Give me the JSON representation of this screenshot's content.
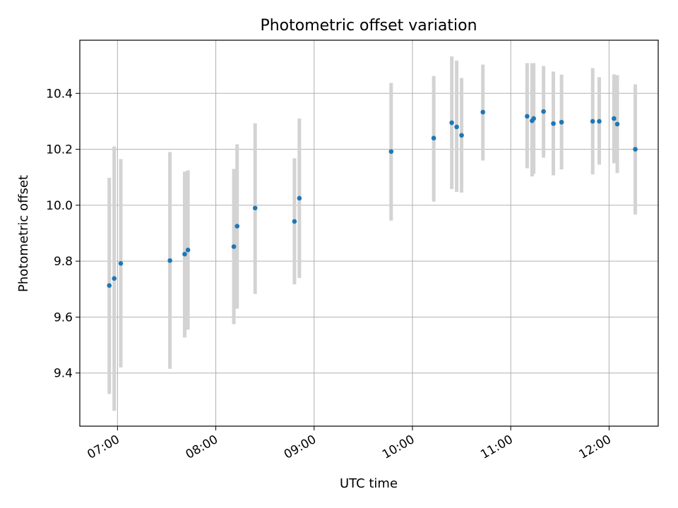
{
  "chart_data": {
    "type": "scatter",
    "title": "Photometric offset variation",
    "xlabel": "UTC time",
    "ylabel": "Photometric offset",
    "x_unit": "time (HH:MM UTC)",
    "xlim": [
      "06:37",
      "12:30"
    ],
    "ylim": [
      9.21,
      10.59
    ],
    "x_ticks": [
      "07:00",
      "08:00",
      "09:00",
      "10:00",
      "11:00",
      "12:00"
    ],
    "y_ticks": [
      9.4,
      9.6,
      9.8,
      10.0,
      10.2,
      10.4
    ],
    "y_tick_labels": [
      "9.4",
      "9.6",
      "9.8",
      "10.0",
      "10.2",
      "10.4"
    ],
    "grid": true,
    "legend": "none",
    "colors": {
      "marker": "#1f77b4",
      "errorbar": "#d3d3d3",
      "grid": "#b0b0b0"
    },
    "points": [
      {
        "x": "06:55",
        "y": 9.713,
        "low": 9.325,
        "high": 10.098
      },
      {
        "x": "06:58",
        "y": 9.738,
        "low": 9.265,
        "high": 10.21
      },
      {
        "x": "07:02",
        "y": 9.792,
        "low": 9.42,
        "high": 10.165
      },
      {
        "x": "07:32",
        "y": 9.802,
        "low": 9.415,
        "high": 10.19
      },
      {
        "x": "07:41",
        "y": 9.825,
        "low": 9.527,
        "high": 10.12
      },
      {
        "x": "07:43",
        "y": 9.84,
        "low": 9.555,
        "high": 10.125
      },
      {
        "x": "08:11",
        "y": 9.852,
        "low": 9.575,
        "high": 10.13
      },
      {
        "x": "08:13",
        "y": 9.925,
        "low": 9.63,
        "high": 10.218
      },
      {
        "x": "08:24",
        "y": 9.99,
        "low": 9.683,
        "high": 10.293
      },
      {
        "x": "08:48",
        "y": 9.942,
        "low": 9.717,
        "high": 10.168
      },
      {
        "x": "08:51",
        "y": 10.025,
        "low": 9.74,
        "high": 10.31
      },
      {
        "x": "09:47",
        "y": 10.192,
        "low": 9.945,
        "high": 10.437
      },
      {
        "x": "10:13",
        "y": 10.24,
        "low": 10.013,
        "high": 10.462
      },
      {
        "x": "10:24",
        "y": 10.295,
        "low": 10.058,
        "high": 10.532
      },
      {
        "x": "10:27",
        "y": 10.28,
        "low": 10.048,
        "high": 10.517
      },
      {
        "x": "10:30",
        "y": 10.25,
        "low": 10.045,
        "high": 10.455
      },
      {
        "x": "10:43",
        "y": 10.333,
        "low": 10.16,
        "high": 10.503
      },
      {
        "x": "11:10",
        "y": 10.318,
        "low": 10.132,
        "high": 10.508
      },
      {
        "x": "11:13",
        "y": 10.302,
        "low": 10.103,
        "high": 10.508
      },
      {
        "x": "11:14",
        "y": 10.31,
        "low": 10.112,
        "high": 10.508
      },
      {
        "x": "11:20",
        "y": 10.335,
        "low": 10.17,
        "high": 10.498
      },
      {
        "x": "11:26",
        "y": 10.292,
        "low": 10.107,
        "high": 10.478
      },
      {
        "x": "11:31",
        "y": 10.297,
        "low": 10.128,
        "high": 10.467
      },
      {
        "x": "11:50",
        "y": 10.3,
        "low": 10.11,
        "high": 10.49
      },
      {
        "x": "11:54",
        "y": 10.3,
        "low": 10.145,
        "high": 10.458
      },
      {
        "x": "12:03",
        "y": 10.31,
        "low": 10.15,
        "high": 10.468
      },
      {
        "x": "12:05",
        "y": 10.29,
        "low": 10.115,
        "high": 10.465
      },
      {
        "x": "12:16",
        "y": 10.2,
        "low": 9.967,
        "high": 10.432
      }
    ]
  }
}
